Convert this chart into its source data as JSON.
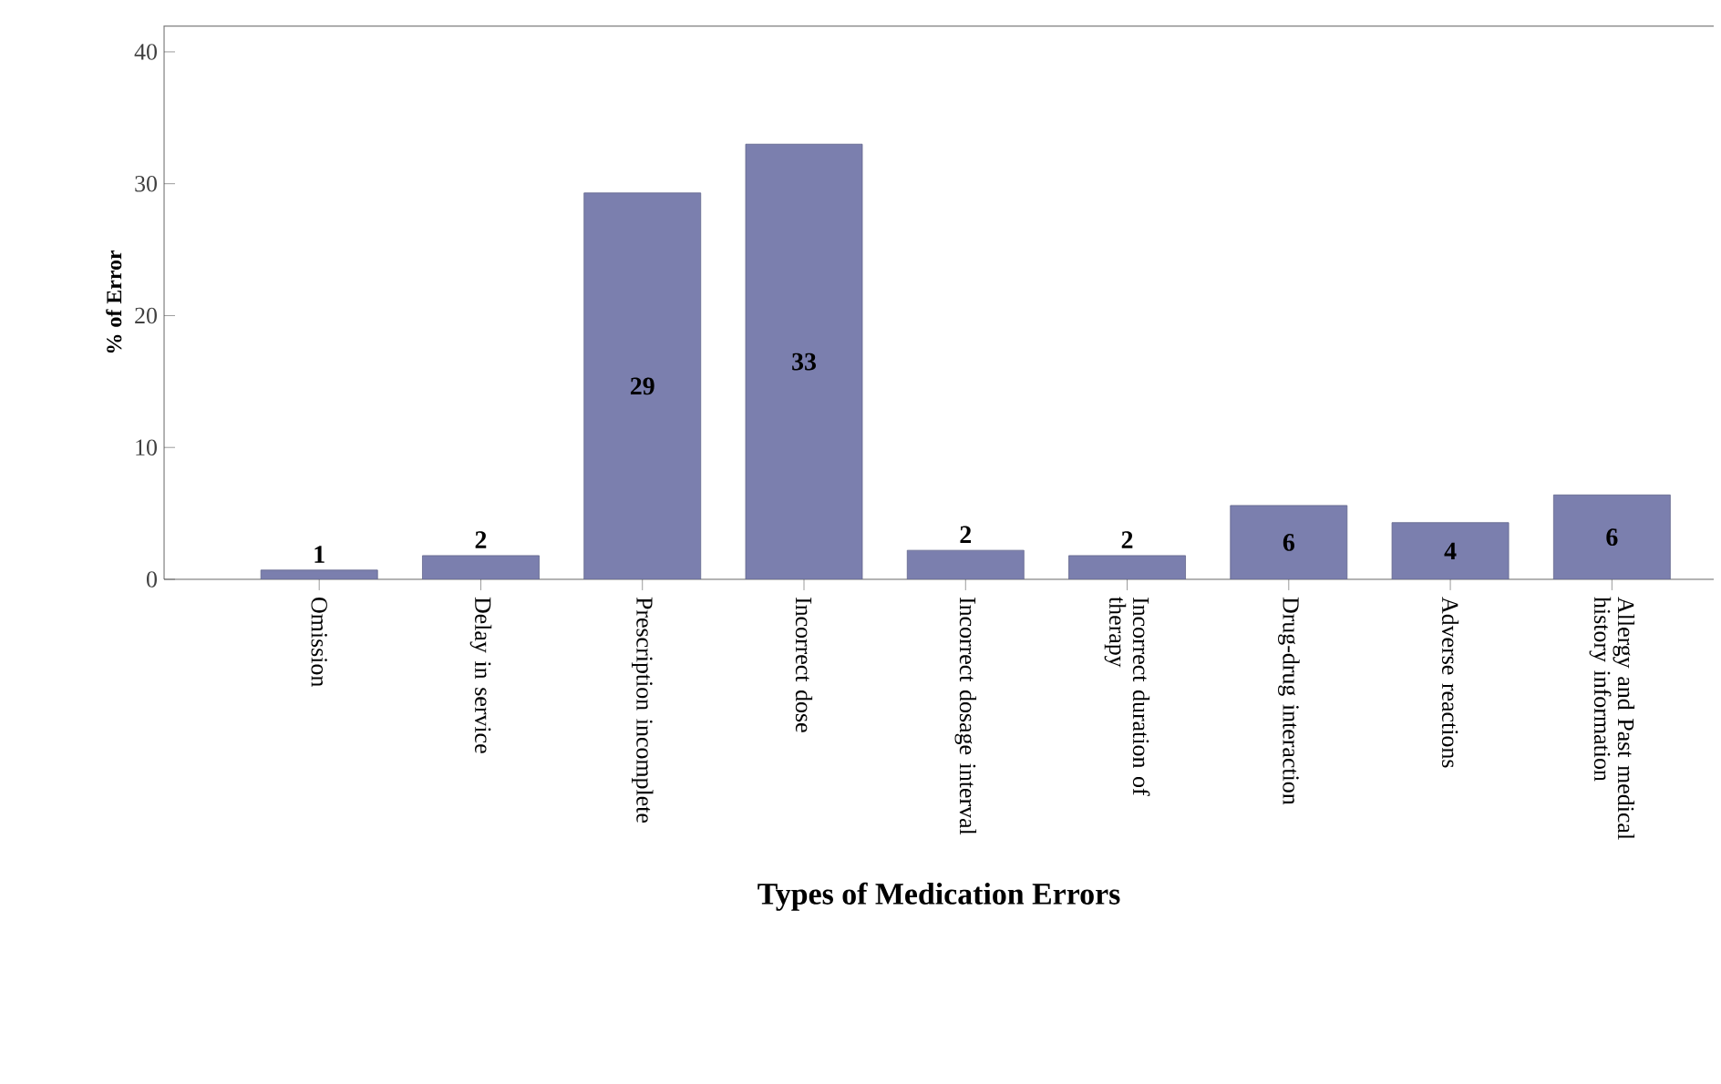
{
  "chart_data": {
    "type": "bar",
    "xlabel": "Types of Medication Errors",
    "ylabel": "% of Error",
    "categories": [
      "Omission",
      "Delay in service",
      "Prescription incomplete",
      "Incorrect dose",
      "Incorrect dosage interval",
      "Incorrect duration of therapy",
      "Drug-drug interaction",
      "Adverse reactions",
      "Allergy and Past medical history information"
    ],
    "values": [
      0.7,
      1.8,
      29.3,
      33.0,
      2.2,
      1.8,
      5.6,
      4.3,
      6.4
    ],
    "value_labels": [
      "1",
      "2",
      "29",
      "33",
      "2",
      "2",
      "6",
      "4",
      "6"
    ],
    "color": "#7b7fae",
    "ylim": [
      0,
      42
    ],
    "yticks": [
      0,
      10,
      20,
      30,
      40
    ],
    "grid": false
  }
}
